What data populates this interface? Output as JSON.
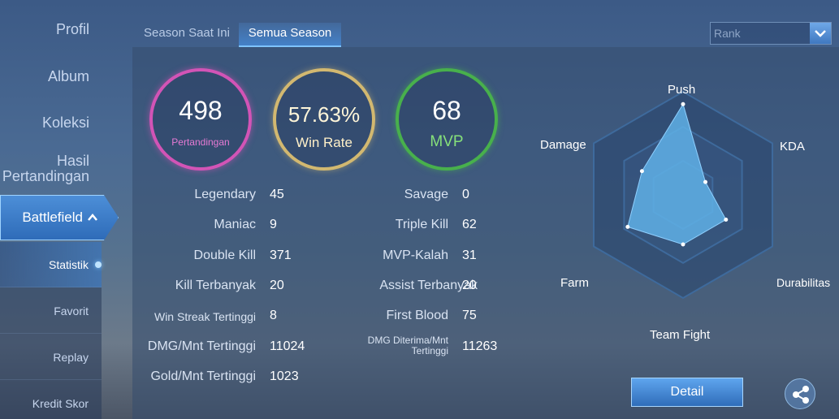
{
  "sidebar": {
    "items": [
      {
        "label": "Profil"
      },
      {
        "label": "Album"
      },
      {
        "label": "Koleksi"
      },
      {
        "label": "Hasil\nPertandingan"
      }
    ],
    "active": {
      "label": "Battlefield",
      "icon": "chevron-up-icon"
    },
    "sub_items": [
      {
        "label": "Statistik"
      },
      {
        "label": "Favorit"
      },
      {
        "label": "Replay"
      },
      {
        "label": "Kredit Skor"
      }
    ]
  },
  "tabs": [
    {
      "label": "Season Saat Ini"
    },
    {
      "label": "Semua Season"
    }
  ],
  "dropdown": {
    "selected": "Rank",
    "icon": "chevron-down-icon"
  },
  "rings": [
    {
      "value": "498",
      "label": "Pertandingan",
      "color": "#d254b6"
    },
    {
      "value": "57.63%",
      "label": "Win Rate",
      "color": "#d2b870"
    },
    {
      "value": "68",
      "label": "MVP",
      "color": "#48b04c"
    }
  ],
  "stats_left": [
    {
      "label": "Legendary",
      "value": "45"
    },
    {
      "label": "Maniac",
      "value": "9"
    },
    {
      "label": "Double Kill",
      "value": "371"
    },
    {
      "label": "Kill Terbanyak",
      "value": "20"
    },
    {
      "label": "Win Streak Tertinggi",
      "value": "8"
    },
    {
      "label": "DMG/Mnt Tertinggi",
      "value": "11024"
    },
    {
      "label": "Gold/Mnt Tertinggi",
      "value": "1023"
    }
  ],
  "stats_right": [
    {
      "label": "Savage",
      "value": "0"
    },
    {
      "label": "Triple Kill",
      "value": "62"
    },
    {
      "label": "MVP-Kalah",
      "value": "31"
    },
    {
      "label": "Assist Terbanyak",
      "value": "20"
    },
    {
      "label": "First Blood",
      "value": "75"
    },
    {
      "label": "DMG Diterima/Mnt\nTertinggi",
      "value": "11263"
    }
  ],
  "radar": {
    "axes": [
      "Push",
      "KDA",
      "Durabilitas",
      "Team Fight",
      "Farm",
      "Damage"
    ],
    "levels": [
      0.88,
      0.25,
      0.48,
      0.48,
      0.62,
      0.46
    ],
    "fill_color": "#5fb0e6"
  },
  "buttons": {
    "detail": "Detail",
    "share_icon": "share-icon"
  }
}
